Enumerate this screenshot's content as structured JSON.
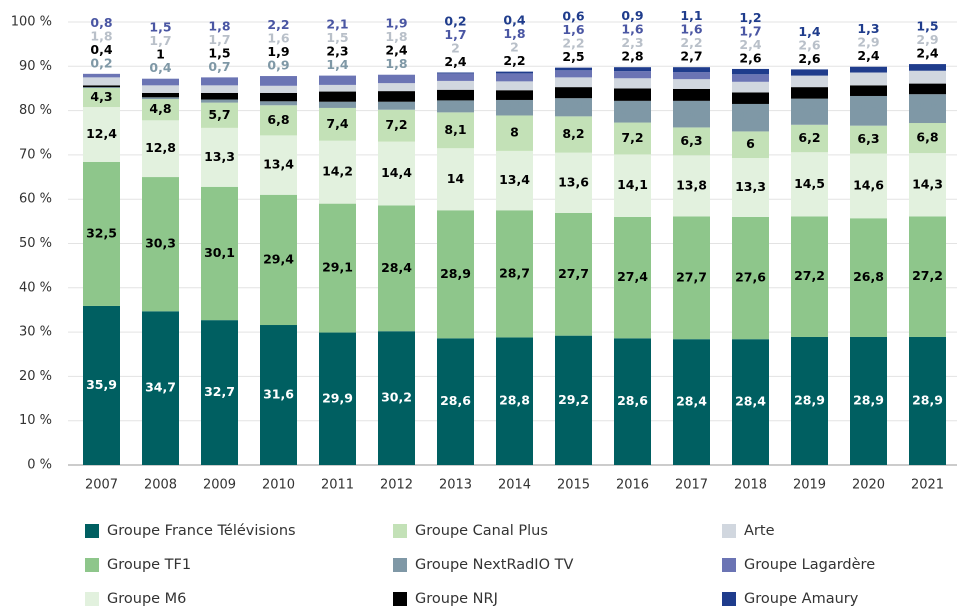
{
  "chart_data": {
    "type": "stacked_bar",
    "categories": [
      "2007",
      "2008",
      "2009",
      "2010",
      "2011",
      "2012",
      "2013",
      "2014",
      "2015",
      "2016",
      "2017",
      "2018",
      "2019",
      "2020",
      "2021"
    ],
    "series": [
      {
        "name": "Groupe France Télévisions",
        "color": "#005f61",
        "values": [
          35.9,
          34.7,
          32.7,
          31.6,
          29.9,
          30.2,
          28.6,
          28.8,
          29.2,
          28.6,
          28.4,
          28.4,
          28.9,
          28.9,
          28.9
        ],
        "value_labels": [
          "35,9",
          "34,7",
          "32,7",
          "31,6",
          "29,9",
          "30,2",
          "28,6",
          "28,8",
          "29,2",
          "28,6",
          "28,4",
          "28,4",
          "28,9",
          "28,9",
          "28,9"
        ]
      },
      {
        "name": "Groupe TF1",
        "color": "#8ec68b",
        "values": [
          32.5,
          30.3,
          30.1,
          29.4,
          29.1,
          28.4,
          28.9,
          28.7,
          27.7,
          27.4,
          27.7,
          27.6,
          27.2,
          26.8,
          27.2
        ],
        "value_labels": [
          "32,5",
          "30,3",
          "30,1",
          "29,4",
          "29,1",
          "28,4",
          "28,9",
          "28,7",
          "27,7",
          "27,4",
          "27,7",
          "27,6",
          "27,2",
          "26,8",
          "27,2"
        ]
      },
      {
        "name": "Groupe M6",
        "color": "#e2f1de",
        "values": [
          12.4,
          12.8,
          13.3,
          13.4,
          14.2,
          14.4,
          14,
          13.4,
          13.6,
          14.1,
          13.8,
          13.3,
          14.5,
          14.6,
          14.3
        ],
        "value_labels": [
          "12,4",
          "12,8",
          "13,3",
          "13,4",
          "14,2",
          "14,4",
          "14",
          "13,4",
          "13,6",
          "14,1",
          "13,8",
          "13,3",
          "14,5",
          "14,6",
          "14,3"
        ]
      },
      {
        "name": "Groupe Canal Plus",
        "color": "#c3e1b7",
        "values": [
          4.3,
          4.8,
          5.7,
          6.8,
          7.4,
          7.2,
          8.1,
          8,
          8.2,
          7.2,
          6.3,
          6,
          6.2,
          6.3,
          6.8
        ],
        "value_labels": [
          "4,3",
          "4,8",
          "5,7",
          "6,8",
          "7,4",
          "7,2",
          "8,1",
          "8",
          "8,2",
          "7,2",
          "6,3",
          "6",
          "6,2",
          "6,3",
          "6,8"
        ]
      },
      {
        "name": "Groupe NextRadIO TV",
        "color": "#7f98a6",
        "values": [
          0.2,
          0.4,
          0.7,
          0.9,
          1.4,
          1.8,
          2.7,
          3.5,
          4.1,
          4.9,
          6,
          6.2,
          5.9,
          6.7,
          6.5
        ],
        "value_labels": [
          "0,2",
          "0,4",
          "0,7",
          "0,9",
          "1,4",
          "1,8",
          "2,7",
          "3,5",
          "4,1",
          "4,9",
          "6",
          "6,2",
          "5,9",
          "6,7",
          "6,5"
        ]
      },
      {
        "name": "Groupe NRJ",
        "color": "#000000",
        "values": [
          0.4,
          1,
          1.5,
          1.9,
          2.3,
          2.4,
          2.4,
          2.2,
          2.5,
          2.8,
          2.7,
          2.6,
          2.6,
          2.4,
          2.4
        ],
        "value_labels": [
          "0,4",
          "1",
          "1,5",
          "1,9",
          "2,3",
          "2,4",
          "2,4",
          "2,2",
          "2,5",
          "2,8",
          "2,7",
          "2,6",
          "2,6",
          "2,4",
          "2,4"
        ]
      },
      {
        "name": "Arte",
        "color": "#d1d7df",
        "values": [
          1.8,
          1.7,
          1.7,
          1.6,
          1.5,
          1.8,
          2,
          2,
          2.2,
          2.3,
          2.2,
          2.4,
          2.6,
          2.9,
          2.9
        ],
        "value_labels": [
          "1,8",
          "1,7",
          "1,7",
          "1,6",
          "1,5",
          "1,8",
          "2",
          "2",
          "2,2",
          "2,3",
          "2,2",
          "2,4",
          "2,6",
          "2,9",
          "2,9"
        ]
      },
      {
        "name": "Groupe Lagardère",
        "color": "#6b74b4",
        "values": [
          0.8,
          1.5,
          1.8,
          2.2,
          2.1,
          1.9,
          1.7,
          1.8,
          1.6,
          1.6,
          1.6,
          1.7,
          null,
          null,
          null
        ],
        "value_labels": [
          "0,8",
          "1,5",
          "1,8",
          "2,2",
          "2,1",
          "1,9",
          "1,7",
          "1,8",
          "1,6",
          "1,6",
          "1,6",
          "1,7",
          null,
          null,
          null
        ]
      },
      {
        "name": "Groupe Amaury",
        "color": "#1f3c8c",
        "values": [
          null,
          null,
          null,
          null,
          null,
          null,
          0.2,
          0.4,
          0.6,
          0.9,
          1.1,
          1.2,
          1.4,
          1.3,
          1.5
        ],
        "value_labels": [
          null,
          null,
          null,
          null,
          null,
          null,
          "0,2",
          "0,4",
          "0,6",
          "0,9",
          "1,1",
          "1,2",
          "1,4",
          "1,3",
          "1,5"
        ]
      }
    ],
    "ylim": [
      0,
      100
    ],
    "yticks": [
      {
        "value": 0,
        "label": "0 %"
      },
      {
        "value": 10,
        "label": "10 %"
      },
      {
        "value": 20,
        "label": "20 %"
      },
      {
        "value": 30,
        "label": "30 %"
      },
      {
        "value": 40,
        "label": "40 %"
      },
      {
        "value": 50,
        "label": "50 %"
      },
      {
        "value": 60,
        "label": "60 %"
      },
      {
        "value": 70,
        "label": "70 %"
      },
      {
        "value": 80,
        "label": "80 %"
      },
      {
        "value": 90,
        "label": "90 %"
      },
      {
        "value": 100,
        "label": "100 %"
      }
    ],
    "grid": true
  }
}
